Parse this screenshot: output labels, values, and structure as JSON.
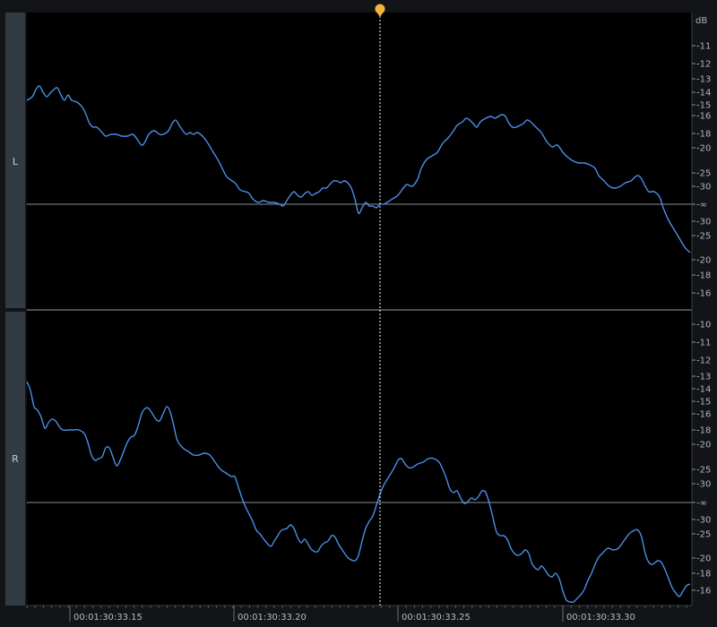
{
  "channels": [
    {
      "label": "L"
    },
    {
      "label": "R"
    }
  ],
  "db_scale": {
    "unit": "dB",
    "left_ticks": [
      "-11",
      "-12",
      "-13",
      "-14",
      "-15",
      "-16",
      "-18",
      "-20",
      "-25",
      "-30",
      "-∞",
      "-30",
      "-25",
      "-20",
      "-18",
      "-16"
    ],
    "right_ticks": [
      "-10",
      "-11",
      "-12",
      "-13",
      "-14",
      "-15",
      "-16",
      "-18",
      "-20",
      "-25",
      "-30",
      "-∞",
      "-30",
      "-25",
      "-20",
      "-18",
      "-16"
    ]
  },
  "timeline": {
    "labels": [
      "00:01:30:33.15",
      "00:01:30:33.20",
      "00:01:30:33.25",
      "00:01:30:33.30"
    ]
  },
  "colors": {
    "waveform": "#4a8fe8",
    "playhead_marker": "#f5b53b",
    "background": "#000000",
    "ruler_bg": "#121418",
    "track_label_bg": "#323a44"
  },
  "icons": {
    "playhead": "playhead-marker-icon"
  }
}
